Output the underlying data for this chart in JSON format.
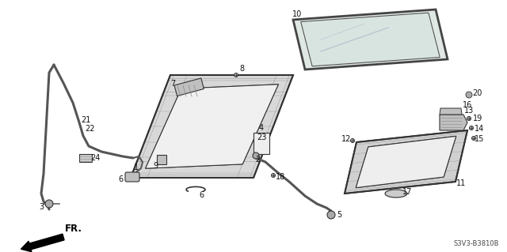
{
  "bg_color": "#ffffff",
  "line_color": "#333333",
  "text_color": "#111111",
  "diagram_code": "S3V3-B3810B",
  "fig_width": 6.4,
  "fig_height": 3.19,
  "dpi": 100
}
